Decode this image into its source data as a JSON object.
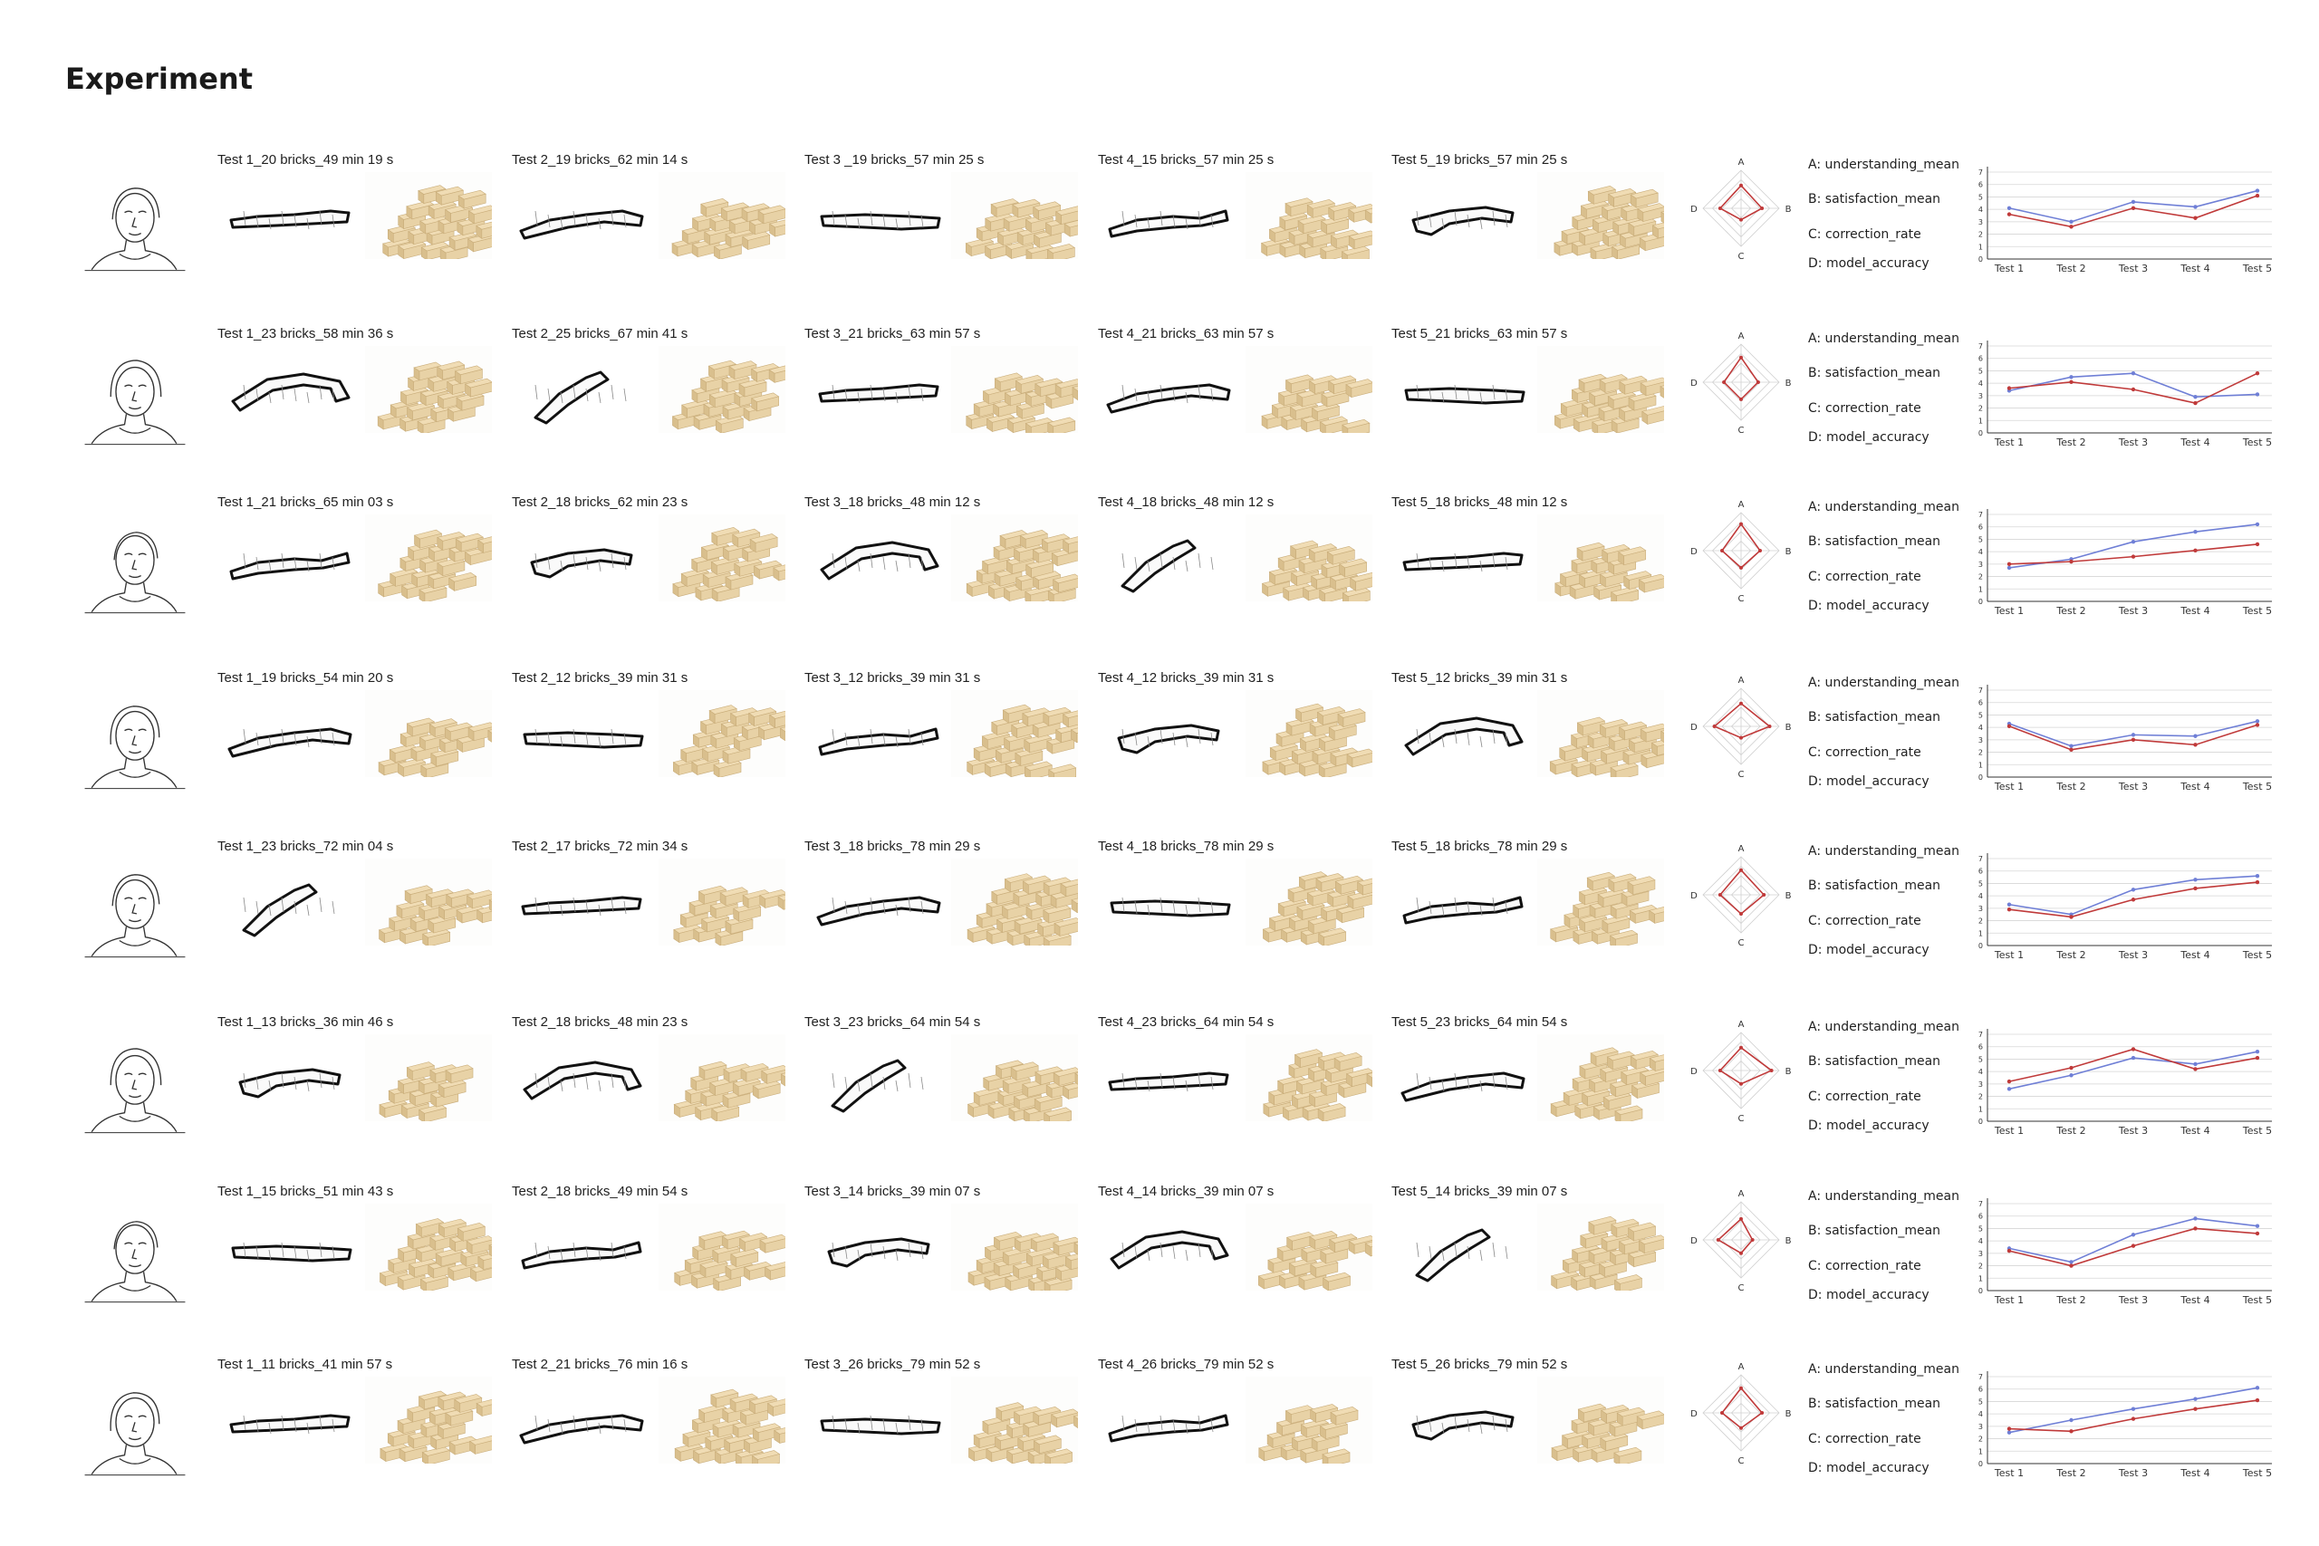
{
  "page": {
    "title": "Experiment"
  },
  "radar_axes": [
    "A",
    "B",
    "C",
    "D"
  ],
  "legend": [
    "A: understanding_mean",
    "B: satisfaction_mean",
    "C: correction_rate",
    "D: model_accuracy"
  ],
  "colors": {
    "series_blue": "#6f7fd6",
    "series_red": "#c03a3a",
    "outline": "#111111",
    "brick": "#e8d2a6",
    "brick_edge": "#c9ad7a"
  },
  "participants": [
    {
      "tests": [
        "Test 1_20 bricks_49 min 19 s",
        "Test 2_19 bricks_62 min 14 s",
        "Test 3 _19 bricks_57 min 25 s",
        "Test 4_15 bricks_57 min 25 s",
        "Test 5_19 bricks_57 min 25 s"
      ]
    },
    {
      "tests": [
        "Test 1_23 bricks_58 min 36 s",
        "Test 2_25 bricks_67 min 41 s",
        "Test 3_21 bricks_63 min 57 s",
        "Test 4_21 bricks_63 min 57 s",
        "Test 5_21 bricks_63 min 57 s"
      ]
    },
    {
      "tests": [
        "Test 1_21 bricks_65 min 03 s",
        "Test 2_18 bricks_62 min 23 s",
        "Test 3_18 bricks_48 min 12 s",
        "Test 4_18 bricks_48 min 12 s",
        "Test 5_18 bricks_48 min 12 s"
      ]
    },
    {
      "tests": [
        "Test 1_19 bricks_54 min 20 s",
        "Test 2_12 bricks_39 min 31 s",
        "Test 3_12 bricks_39 min 31 s",
        "Test 4_12 bricks_39 min 31 s",
        "Test 5_12 bricks_39 min 31 s"
      ]
    },
    {
      "tests": [
        "Test 1_23 bricks_72 min 04 s",
        "Test 2_17 bricks_72 min 34 s",
        "Test 3_18 bricks_78 min 29 s",
        "Test 4_18 bricks_78 min 29 s",
        "Test 5_18 bricks_78 min 29 s"
      ]
    },
    {
      "tests": [
        "Test 1_13 bricks_36 min 46 s",
        "Test 2_18 bricks_48 min 23 s",
        "Test 3_23 bricks_64 min 54 s",
        "Test 4_23 bricks_64 min 54 s",
        "Test 5_23 bricks_64 min 54 s"
      ]
    },
    {
      "tests": [
        "Test 1_15 bricks_51 min 43 s",
        "Test 2_18 bricks_49 min 54 s",
        "Test 3_14 bricks_39 min 07 s",
        "Test 4_14 bricks_39 min 07 s",
        "Test 5_14 bricks_39 min 07 s"
      ]
    },
    {
      "tests": [
        "Test 1_11 bricks_41 min 57 s",
        "Test 2_21 bricks_76 min 16 s",
        "Test 3_26 bricks_79 min 52 s",
        "Test 4_26 bricks_79 min 52 s",
        "Test 5_26 bricks_79 min 52 s"
      ]
    }
  ],
  "chart_data": [
    {
      "type": "line",
      "x": [
        "Test 1",
        "Test 2",
        "Test 3",
        "Test 4",
        "Test 5"
      ],
      "yticks": [
        "0",
        "1",
        "2",
        "3",
        "4",
        "5",
        "6",
        "7"
      ],
      "ylim": [
        0,
        7
      ],
      "series": [
        {
          "color": "#6f7fd6",
          "values": [
            4.1,
            3.0,
            4.6,
            4.2,
            5.5
          ]
        },
        {
          "color": "#c03a3a",
          "values": [
            3.6,
            2.6,
            4.1,
            3.3,
            5.1
          ]
        }
      ],
      "radar": {
        "A": 0.6,
        "B": 0.55,
        "C": 0.3,
        "D": 0.55
      }
    },
    {
      "type": "line",
      "x": [
        "Test 1",
        "Test 2",
        "Test 3",
        "Test 4",
        "Test 5"
      ],
      "yticks": [
        "0",
        "1",
        "2",
        "3",
        "4",
        "5",
        "6",
        "7"
      ],
      "ylim": [
        0,
        7
      ],
      "series": [
        {
          "color": "#6f7fd6",
          "values": [
            3.4,
            4.5,
            4.8,
            2.9,
            3.1
          ]
        },
        {
          "color": "#c03a3a",
          "values": [
            3.6,
            4.1,
            3.5,
            2.4,
            4.8
          ]
        }
      ],
      "radar": {
        "A": 0.65,
        "B": 0.45,
        "C": 0.45,
        "D": 0.45
      }
    },
    {
      "type": "line",
      "x": [
        "Test 1",
        "Test 2",
        "Test 3",
        "Test 4",
        "Test 5"
      ],
      "yticks": [
        "0",
        "1",
        "2",
        "3",
        "4",
        "5",
        "6",
        "7"
      ],
      "ylim": [
        0,
        7
      ],
      "series": [
        {
          "color": "#6f7fd6",
          "values": [
            2.7,
            3.4,
            4.8,
            5.6,
            6.2
          ]
        },
        {
          "color": "#c03a3a",
          "values": [
            3.0,
            3.2,
            3.6,
            4.1,
            4.6
          ]
        }
      ],
      "radar": {
        "A": 0.7,
        "B": 0.5,
        "C": 0.45,
        "D": 0.5
      }
    },
    {
      "type": "line",
      "x": [
        "Test 1",
        "Test 2",
        "Test 3",
        "Test 4",
        "Test 5"
      ],
      "yticks": [
        "0",
        "1",
        "2",
        "3",
        "4",
        "5",
        "6",
        "7"
      ],
      "ylim": [
        0,
        7
      ],
      "series": [
        {
          "color": "#6f7fd6",
          "values": [
            4.3,
            2.5,
            3.4,
            3.3,
            4.5
          ]
        },
        {
          "color": "#c03a3a",
          "values": [
            4.1,
            2.2,
            3.0,
            2.6,
            4.2
          ]
        }
      ],
      "radar": {
        "A": 0.6,
        "B": 0.75,
        "C": 0.3,
        "D": 0.7
      }
    },
    {
      "type": "line",
      "x": [
        "Test 1",
        "Test 2",
        "Test 3",
        "Test 4",
        "Test 5"
      ],
      "yticks": [
        "0",
        "1",
        "2",
        "3",
        "4",
        "5",
        "6",
        "7"
      ],
      "ylim": [
        0,
        7
      ],
      "series": [
        {
          "color": "#6f7fd6",
          "values": [
            3.3,
            2.5,
            4.5,
            5.3,
            5.6
          ]
        },
        {
          "color": "#c03a3a",
          "values": [
            2.9,
            2.3,
            3.7,
            4.6,
            5.1
          ]
        }
      ],
      "radar": {
        "A": 0.65,
        "B": 0.6,
        "C": 0.5,
        "D": 0.55
      }
    },
    {
      "type": "line",
      "x": [
        "Test 1",
        "Test 2",
        "Test 3",
        "Test 4",
        "Test 5"
      ],
      "yticks": [
        "0",
        "1",
        "2",
        "3",
        "4",
        "5",
        "6",
        "7"
      ],
      "ylim": [
        0,
        7
      ],
      "series": [
        {
          "color": "#6f7fd6",
          "values": [
            2.6,
            3.7,
            5.1,
            4.6,
            5.6
          ]
        },
        {
          "color": "#c03a3a",
          "values": [
            3.2,
            4.3,
            5.8,
            4.2,
            5.1
          ]
        }
      ],
      "radar": {
        "A": 0.6,
        "B": 0.8,
        "C": 0.35,
        "D": 0.55
      }
    },
    {
      "type": "line",
      "x": [
        "Test 1",
        "Test 2",
        "Test 3",
        "Test 4",
        "Test 5"
      ],
      "yticks": [
        "0",
        "1",
        "2",
        "3",
        "4",
        "5",
        "6",
        "7"
      ],
      "ylim": [
        0,
        7
      ],
      "series": [
        {
          "color": "#6f7fd6",
          "values": [
            3.4,
            2.3,
            4.5,
            5.8,
            5.2
          ]
        },
        {
          "color": "#c03a3a",
          "values": [
            3.2,
            2.0,
            3.6,
            5.0,
            4.6
          ]
        }
      ],
      "radar": {
        "A": 0.55,
        "B": 0.3,
        "C": 0.35,
        "D": 0.6
      }
    },
    {
      "type": "line",
      "x": [
        "Test 1",
        "Test 2",
        "Test 3",
        "Test 4",
        "Test 5"
      ],
      "yticks": [
        "0",
        "1",
        "2",
        "3",
        "4",
        "5",
        "6",
        "7"
      ],
      "ylim": [
        0,
        7
      ],
      "series": [
        {
          "color": "#6f7fd6",
          "values": [
            2.5,
            3.5,
            4.4,
            5.2,
            6.1
          ]
        },
        {
          "color": "#c03a3a",
          "values": [
            2.8,
            2.6,
            3.6,
            4.4,
            5.1
          ]
        }
      ],
      "radar": {
        "A": 0.65,
        "B": 0.55,
        "C": 0.4,
        "D": 0.5
      }
    }
  ]
}
